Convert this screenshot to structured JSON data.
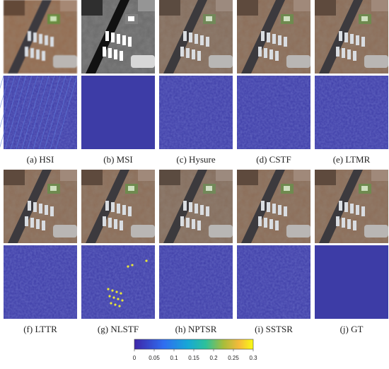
{
  "panels": [
    {
      "caption": "(a) HSI"
    },
    {
      "caption": "(b) MSI"
    },
    {
      "caption": "(c) Hysure"
    },
    {
      "caption": "(d) CSTF"
    },
    {
      "caption": "(e) LTMR"
    },
    {
      "caption": "(f) LTTR"
    },
    {
      "caption": "(g) NLSTF"
    },
    {
      "caption": "(h) NPTSR"
    },
    {
      "caption": "(i) SSTSR"
    },
    {
      "caption": "(j) GT"
    }
  ],
  "colorbar": {
    "lim": [
      0,
      0.3
    ],
    "ticks": [
      0,
      0.05,
      0.1,
      0.15,
      0.2,
      0.25,
      0.3
    ]
  }
}
